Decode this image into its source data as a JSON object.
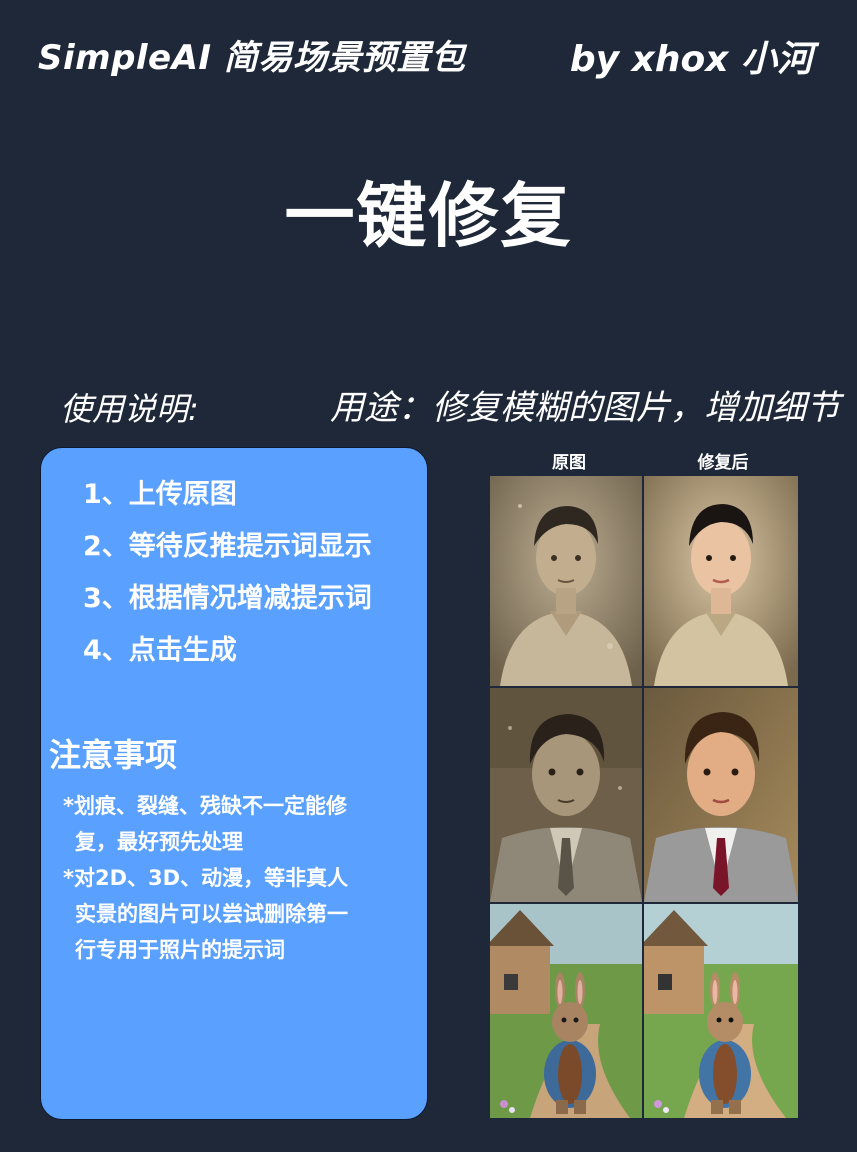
{
  "header": {
    "left_title": "SimpleAI 简易场景预置包",
    "author": "by xhox 小河"
  },
  "main_title": "一键修复",
  "usage_label": "使用说明:",
  "purpose": "用途：修复模糊的图片，增加细节",
  "steps": [
    "1、上传原图",
    "2、等待反推提示词显示",
    "3、根据情况增减提示词",
    "4、点击生成"
  ],
  "notes": {
    "title": "注意事项",
    "lines": [
      "*划痕、裂缝、残缺不一定能修",
      "复，最好预先处理",
      "*对2D、3D、动漫，等非真人",
      "实景的图片可以尝试删除第一",
      "行专用于照片的提示词"
    ]
  },
  "comparison": {
    "before_label": "原图",
    "after_label": "修复后",
    "images": [
      {
        "before": "old-sepia-portrait-young-man",
        "after": "restored-color-portrait-young-man"
      },
      {
        "before": "old-faded-portrait-boy-in-suit",
        "after": "restored-color-portrait-boy-in-suit"
      },
      {
        "before": "rabbit-in-coat-on-village-path",
        "after": "rabbit-in-coat-on-village-path-enhanced"
      }
    ]
  },
  "colors": {
    "background": "#1f2838",
    "card": "#5aa0ff",
    "text": "#ffffff"
  }
}
